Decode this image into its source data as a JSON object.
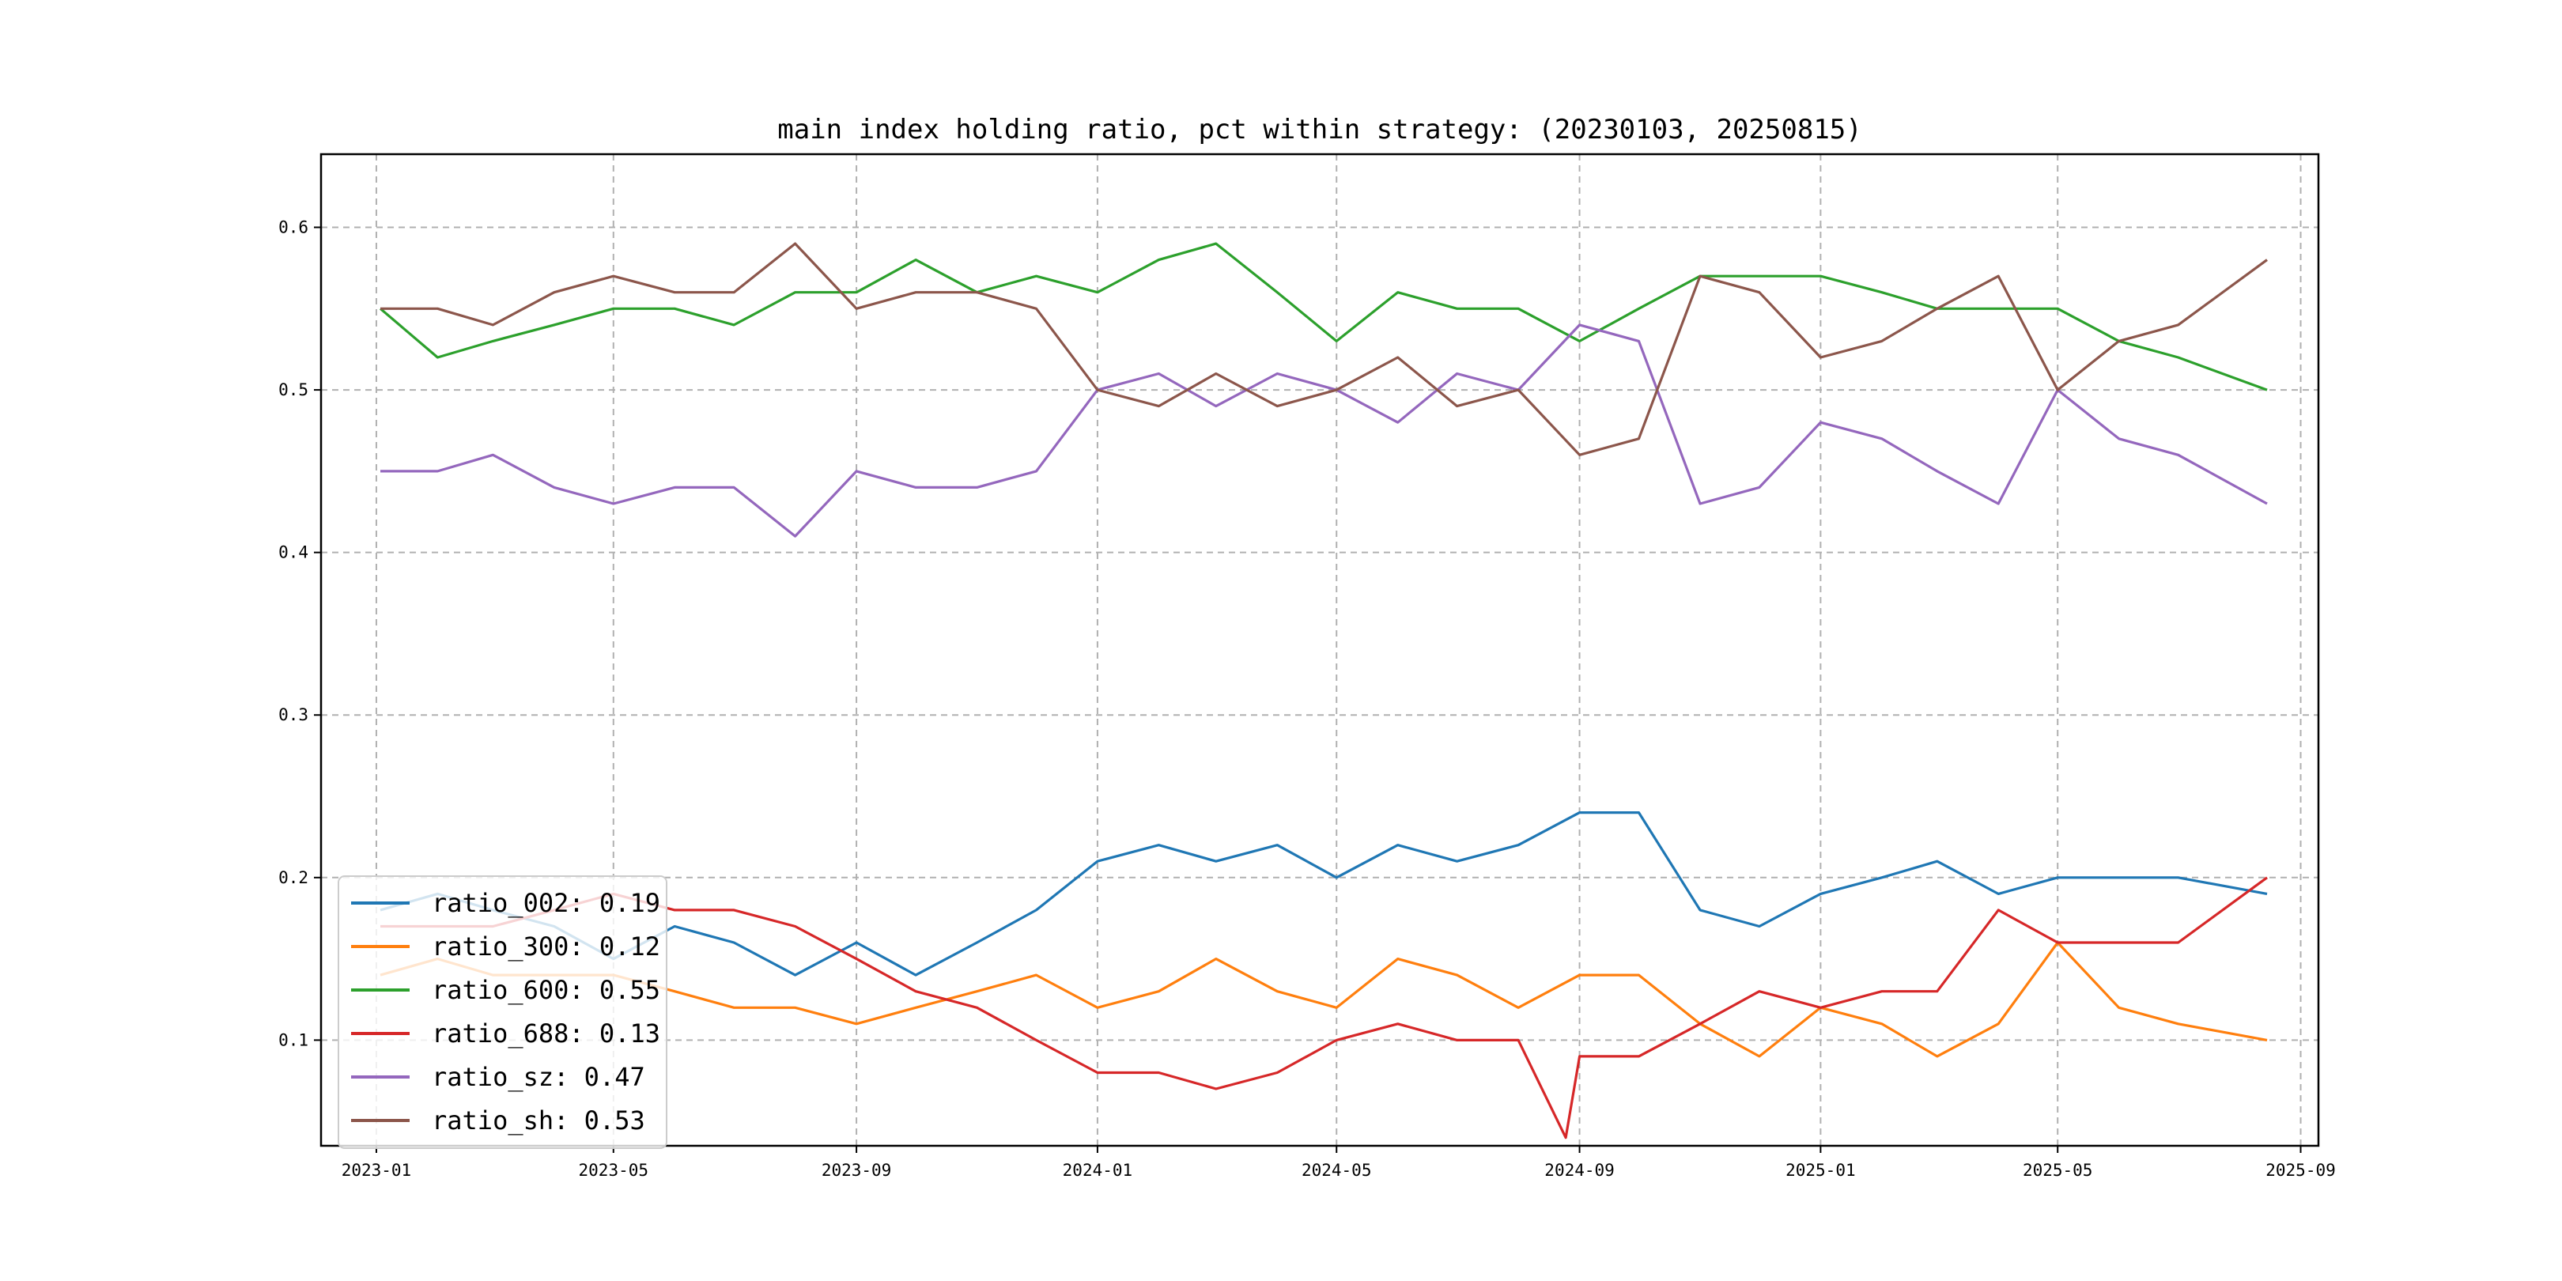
{
  "chart_data": {
    "type": "line",
    "title": "main index holding ratio, pct within strategy: (20230103, 20250815)",
    "xlabel": "",
    "ylabel": "",
    "x_range": [
      "2022-12-04",
      "2025-09-10"
    ],
    "ylim": [
      0.035,
      0.645
    ],
    "grid": true,
    "legend_position": "lower-left",
    "x_ticks": [
      "2023-01",
      "2023-05",
      "2023-09",
      "2024-01",
      "2024-05",
      "2024-09",
      "2025-01",
      "2025-05",
      "2025-09"
    ],
    "y_ticks": [
      "0.1",
      "0.2",
      "0.3",
      "0.4",
      "0.5",
      "0.6"
    ],
    "series": [
      {
        "name": "ratio_002",
        "legend": "ratio_002: 0.19",
        "color": "#1f77b4",
        "points": [
          [
            "2023-01-03",
            0.18
          ],
          [
            "2023-02-01",
            0.19
          ],
          [
            "2023-03-01",
            0.18
          ],
          [
            "2023-04-01",
            0.17
          ],
          [
            "2023-05-01",
            0.15
          ],
          [
            "2023-06-01",
            0.17
          ],
          [
            "2023-07-01",
            0.16
          ],
          [
            "2023-08-01",
            0.14
          ],
          [
            "2023-09-01",
            0.16
          ],
          [
            "2023-10-01",
            0.14
          ],
          [
            "2023-11-01",
            0.16
          ],
          [
            "2023-12-01",
            0.18
          ],
          [
            "2024-01-01",
            0.21
          ],
          [
            "2024-02-01",
            0.22
          ],
          [
            "2024-03-01",
            0.21
          ],
          [
            "2024-04-01",
            0.22
          ],
          [
            "2024-05-01",
            0.2
          ],
          [
            "2024-06-01",
            0.22
          ],
          [
            "2024-07-01",
            0.21
          ],
          [
            "2024-08-01",
            0.22
          ],
          [
            "2024-09-01",
            0.24
          ],
          [
            "2024-10-01",
            0.24
          ],
          [
            "2024-11-01",
            0.18
          ],
          [
            "2024-12-01",
            0.17
          ],
          [
            "2025-01-01",
            0.19
          ],
          [
            "2025-02-01",
            0.2
          ],
          [
            "2025-03-01",
            0.21
          ],
          [
            "2025-04-01",
            0.19
          ],
          [
            "2025-05-01",
            0.2
          ],
          [
            "2025-06-01",
            0.2
          ],
          [
            "2025-07-01",
            0.2
          ],
          [
            "2025-08-15",
            0.19
          ]
        ]
      },
      {
        "name": "ratio_300",
        "legend": "ratio_300: 0.12",
        "color": "#ff7f0e",
        "points": [
          [
            "2023-01-03",
            0.14
          ],
          [
            "2023-02-01",
            0.15
          ],
          [
            "2023-03-01",
            0.14
          ],
          [
            "2023-04-01",
            0.14
          ],
          [
            "2023-05-01",
            0.14
          ],
          [
            "2023-06-01",
            0.13
          ],
          [
            "2023-07-01",
            0.12
          ],
          [
            "2023-08-01",
            0.12
          ],
          [
            "2023-09-01",
            0.11
          ],
          [
            "2023-10-01",
            0.12
          ],
          [
            "2023-11-01",
            0.13
          ],
          [
            "2023-12-01",
            0.14
          ],
          [
            "2024-01-01",
            0.12
          ],
          [
            "2024-02-01",
            0.13
          ],
          [
            "2024-03-01",
            0.15
          ],
          [
            "2024-04-01",
            0.13
          ],
          [
            "2024-05-01",
            0.12
          ],
          [
            "2024-06-01",
            0.15
          ],
          [
            "2024-07-01",
            0.14
          ],
          [
            "2024-08-01",
            0.12
          ],
          [
            "2024-09-01",
            0.14
          ],
          [
            "2024-10-01",
            0.14
          ],
          [
            "2024-11-01",
            0.11
          ],
          [
            "2024-12-01",
            0.09
          ],
          [
            "2025-01-01",
            0.12
          ],
          [
            "2025-02-01",
            0.11
          ],
          [
            "2025-03-01",
            0.09
          ],
          [
            "2025-04-01",
            0.11
          ],
          [
            "2025-05-01",
            0.16
          ],
          [
            "2025-06-01",
            0.12
          ],
          [
            "2025-07-01",
            0.11
          ],
          [
            "2025-08-15",
            0.1
          ]
        ]
      },
      {
        "name": "ratio_600",
        "legend": "ratio_600: 0.55",
        "color": "#2ca02c",
        "points": [
          [
            "2023-01-03",
            0.55
          ],
          [
            "2023-02-01",
            0.52
          ],
          [
            "2023-03-01",
            0.53
          ],
          [
            "2023-04-01",
            0.54
          ],
          [
            "2023-05-01",
            0.55
          ],
          [
            "2023-06-01",
            0.55
          ],
          [
            "2023-07-01",
            0.54
          ],
          [
            "2023-08-01",
            0.56
          ],
          [
            "2023-09-01",
            0.56
          ],
          [
            "2023-10-01",
            0.58
          ],
          [
            "2023-11-01",
            0.56
          ],
          [
            "2023-12-01",
            0.57
          ],
          [
            "2024-01-01",
            0.56
          ],
          [
            "2024-02-01",
            0.58
          ],
          [
            "2024-03-01",
            0.59
          ],
          [
            "2024-04-01",
            0.56
          ],
          [
            "2024-05-01",
            0.53
          ],
          [
            "2024-06-01",
            0.56
          ],
          [
            "2024-07-01",
            0.55
          ],
          [
            "2024-08-01",
            0.55
          ],
          [
            "2024-09-01",
            0.53
          ],
          [
            "2024-10-01",
            0.55
          ],
          [
            "2024-11-01",
            0.57
          ],
          [
            "2024-12-01",
            0.57
          ],
          [
            "2025-01-01",
            0.57
          ],
          [
            "2025-02-01",
            0.56
          ],
          [
            "2025-03-01",
            0.55
          ],
          [
            "2025-04-01",
            0.55
          ],
          [
            "2025-05-01",
            0.55
          ],
          [
            "2025-06-01",
            0.53
          ],
          [
            "2025-07-01",
            0.52
          ],
          [
            "2025-08-15",
            0.5
          ]
        ]
      },
      {
        "name": "ratio_688",
        "legend": "ratio_688: 0.13",
        "color": "#d62728",
        "points": [
          [
            "2023-01-03",
            0.17
          ],
          [
            "2023-02-01",
            0.17
          ],
          [
            "2023-03-01",
            0.17
          ],
          [
            "2023-04-01",
            0.18
          ],
          [
            "2023-05-01",
            0.19
          ],
          [
            "2023-06-01",
            0.18
          ],
          [
            "2023-07-01",
            0.18
          ],
          [
            "2023-08-01",
            0.17
          ],
          [
            "2023-09-01",
            0.15
          ],
          [
            "2023-10-01",
            0.13
          ],
          [
            "2023-11-01",
            0.12
          ],
          [
            "2023-12-01",
            0.1
          ],
          [
            "2024-01-01",
            0.08
          ],
          [
            "2024-02-01",
            0.08
          ],
          [
            "2024-03-01",
            0.07
          ],
          [
            "2024-04-01",
            0.08
          ],
          [
            "2024-05-01",
            0.1
          ],
          [
            "2024-06-01",
            0.11
          ],
          [
            "2024-07-01",
            0.1
          ],
          [
            "2024-08-01",
            0.1
          ],
          [
            "2024-08-25",
            0.04
          ],
          [
            "2024-09-01",
            0.09
          ],
          [
            "2024-10-01",
            0.09
          ],
          [
            "2024-11-01",
            0.11
          ],
          [
            "2024-12-01",
            0.13
          ],
          [
            "2025-01-01",
            0.12
          ],
          [
            "2025-02-01",
            0.13
          ],
          [
            "2025-03-01",
            0.13
          ],
          [
            "2025-04-01",
            0.18
          ],
          [
            "2025-05-01",
            0.16
          ],
          [
            "2025-06-01",
            0.16
          ],
          [
            "2025-07-01",
            0.16
          ],
          [
            "2025-08-15",
            0.2
          ]
        ]
      },
      {
        "name": "ratio_sz",
        "legend": "ratio_sz: 0.47",
        "color": "#9467bd",
        "points": [
          [
            "2023-01-03",
            0.45
          ],
          [
            "2023-02-01",
            0.45
          ],
          [
            "2023-03-01",
            0.46
          ],
          [
            "2023-04-01",
            0.44
          ],
          [
            "2023-05-01",
            0.43
          ],
          [
            "2023-06-01",
            0.44
          ],
          [
            "2023-07-01",
            0.44
          ],
          [
            "2023-08-01",
            0.41
          ],
          [
            "2023-09-01",
            0.45
          ],
          [
            "2023-10-01",
            0.44
          ],
          [
            "2023-11-01",
            0.44
          ],
          [
            "2023-12-01",
            0.45
          ],
          [
            "2024-01-01",
            0.5
          ],
          [
            "2024-02-01",
            0.51
          ],
          [
            "2024-03-01",
            0.49
          ],
          [
            "2024-04-01",
            0.51
          ],
          [
            "2024-05-01",
            0.5
          ],
          [
            "2024-06-01",
            0.48
          ],
          [
            "2024-07-01",
            0.51
          ],
          [
            "2024-08-01",
            0.5
          ],
          [
            "2024-09-01",
            0.54
          ],
          [
            "2024-10-01",
            0.53
          ],
          [
            "2024-11-01",
            0.43
          ],
          [
            "2024-12-01",
            0.44
          ],
          [
            "2025-01-01",
            0.48
          ],
          [
            "2025-02-01",
            0.47
          ],
          [
            "2025-03-01",
            0.45
          ],
          [
            "2025-04-01",
            0.43
          ],
          [
            "2025-05-01",
            0.5
          ],
          [
            "2025-06-01",
            0.47
          ],
          [
            "2025-07-01",
            0.46
          ],
          [
            "2025-08-15",
            0.43
          ]
        ]
      },
      {
        "name": "ratio_sh",
        "legend": "ratio_sh: 0.53",
        "color": "#8c564b",
        "points": [
          [
            "2023-01-03",
            0.55
          ],
          [
            "2023-02-01",
            0.55
          ],
          [
            "2023-03-01",
            0.54
          ],
          [
            "2023-04-01",
            0.56
          ],
          [
            "2023-05-01",
            0.57
          ],
          [
            "2023-06-01",
            0.56
          ],
          [
            "2023-07-01",
            0.56
          ],
          [
            "2023-08-01",
            0.59
          ],
          [
            "2023-09-01",
            0.55
          ],
          [
            "2023-10-01",
            0.56
          ],
          [
            "2023-11-01",
            0.56
          ],
          [
            "2023-12-01",
            0.55
          ],
          [
            "2024-01-01",
            0.5
          ],
          [
            "2024-02-01",
            0.49
          ],
          [
            "2024-03-01",
            0.51
          ],
          [
            "2024-04-01",
            0.49
          ],
          [
            "2024-05-01",
            0.5
          ],
          [
            "2024-06-01",
            0.52
          ],
          [
            "2024-07-01",
            0.49
          ],
          [
            "2024-08-01",
            0.5
          ],
          [
            "2024-09-01",
            0.46
          ],
          [
            "2024-10-01",
            0.47
          ],
          [
            "2024-11-01",
            0.57
          ],
          [
            "2024-12-01",
            0.56
          ],
          [
            "2025-01-01",
            0.52
          ],
          [
            "2025-02-01",
            0.53
          ],
          [
            "2025-03-01",
            0.55
          ],
          [
            "2025-04-01",
            0.57
          ],
          [
            "2025-05-01",
            0.5
          ],
          [
            "2025-06-01",
            0.53
          ],
          [
            "2025-07-01",
            0.54
          ],
          [
            "2025-08-15",
            0.58
          ]
        ]
      }
    ]
  }
}
